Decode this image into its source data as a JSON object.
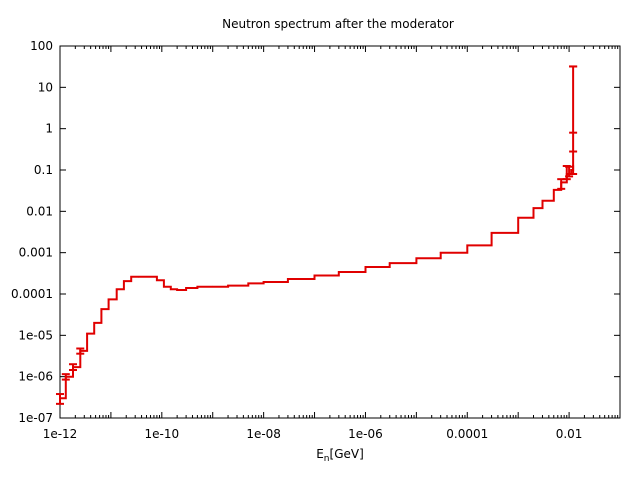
{
  "chart_data": {
    "type": "line",
    "title": "Neutron spectrum after the moderator",
    "xlabel_main": "E",
    "xlabel_sub": "n",
    "xlabel_unit": "[GeV]",
    "ylabel": "",
    "xscale": "log",
    "yscale": "log",
    "xlim": [
      1e-12,
      0.1
    ],
    "ylim": [
      1e-07,
      100
    ],
    "grid": false,
    "legend": "none",
    "line_color": "#e00000",
    "x_ticks": [
      {
        "v": 1e-12,
        "label": "1e-12"
      },
      {
        "v": 1e-10,
        "label": "1e-10"
      },
      {
        "v": 1e-08,
        "label": "1e-08"
      },
      {
        "v": 1e-06,
        "label": "1e-06"
      },
      {
        "v": 0.0001,
        "label": "0.0001"
      },
      {
        "v": 0.01,
        "label": "0.01"
      }
    ],
    "y_ticks": [
      {
        "v": 100,
        "label": "100"
      },
      {
        "v": 10,
        "label": "10"
      },
      {
        "v": 1,
        "label": "1"
      },
      {
        "v": 0.1,
        "label": "0.1"
      },
      {
        "v": 0.01,
        "label": "0.01"
      },
      {
        "v": 0.001,
        "label": "0.001"
      },
      {
        "v": 0.0001,
        "label": "0.0001"
      },
      {
        "v": 1e-05,
        "label": "1e-05"
      },
      {
        "v": 1e-06,
        "label": "1e-06"
      },
      {
        "v": 1e-07,
        "label": "1e-07"
      }
    ],
    "series": [
      {
        "points": [
          {
            "x": 1e-12,
            "y": 3e-07
          },
          {
            "x": 1.3e-12,
            "y": 1e-06
          },
          {
            "x": 1.8e-12,
            "y": 1.7e-06
          },
          {
            "x": 2.5e-12,
            "y": 4.2e-06
          },
          {
            "x": 3.4e-12,
            "y": 1.1e-05
          },
          {
            "x": 4.7e-12,
            "y": 2e-05
          },
          {
            "x": 6.5e-12,
            "y": 4.3e-05
          },
          {
            "x": 9e-12,
            "y": 7.4e-05
          },
          {
            "x": 1.3e-11,
            "y": 0.00013
          },
          {
            "x": 1.8e-11,
            "y": 0.000205
          },
          {
            "x": 2.5e-11,
            "y": 0.00026
          },
          {
            "x": 3.5e-11,
            "y": 0.00026
          },
          {
            "x": 8e-11,
            "y": 0.000215
          },
          {
            "x": 1.1e-10,
            "y": 0.00015
          },
          {
            "x": 1.5e-10,
            "y": 0.00013
          },
          {
            "x": 2e-10,
            "y": 0.000125
          },
          {
            "x": 3e-10,
            "y": 0.00014
          },
          {
            "x": 5e-10,
            "y": 0.00015
          },
          {
            "x": 1e-09,
            "y": 0.00015
          },
          {
            "x": 2e-09,
            "y": 0.00016
          },
          {
            "x": 5e-09,
            "y": 0.00018
          },
          {
            "x": 1e-08,
            "y": 0.000195
          },
          {
            "x": 3e-08,
            "y": 0.00023
          },
          {
            "x": 1e-07,
            "y": 0.00028
          },
          {
            "x": 3e-07,
            "y": 0.00034
          },
          {
            "x": 1e-06,
            "y": 0.00045
          },
          {
            "x": 3e-06,
            "y": 0.00056
          },
          {
            "x": 1e-05,
            "y": 0.00073
          },
          {
            "x": 3e-05,
            "y": 0.001
          },
          {
            "x": 0.0001,
            "y": 0.0015
          },
          {
            "x": 0.0003,
            "y": 0.003
          },
          {
            "x": 0.001,
            "y": 0.007
          },
          {
            "x": 0.002,
            "y": 0.012
          },
          {
            "x": 0.003,
            "y": 0.018
          },
          {
            "x": 0.005,
            "y": 0.033
          },
          {
            "x": 0.007,
            "y": 0.05
          },
          {
            "x": 0.009,
            "y": 0.08
          },
          {
            "x": 0.011,
            "y": 0.1
          },
          {
            "x": 0.012,
            "y": 0.13
          }
        ],
        "error_bars": [
          {
            "x": 1e-12,
            "y": 3e-07,
            "low": 2.2e-07,
            "high": 3.8e-07
          },
          {
            "x": 1.3e-12,
            "y": 1e-06,
            "low": 8.5e-07,
            "high": 1.15e-06
          },
          {
            "x": 1.8e-12,
            "y": 1.7e-06,
            "low": 1.45e-06,
            "high": 2e-06
          },
          {
            "x": 2.5e-12,
            "y": 4.2e-06,
            "low": 3.6e-06,
            "high": 4.8e-06
          },
          {
            "x": 0.007,
            "y": 0.05,
            "low": 0.035,
            "high": 0.06
          },
          {
            "x": 0.009,
            "y": 0.08,
            "low": 0.06,
            "high": 0.125
          },
          {
            "x": 0.01,
            "y": 0.09,
            "low": 0.07,
            "high": 0.12
          },
          {
            "x": 0.012,
            "y": 0.13,
            "low": 0.08,
            "high": 32
          }
        ],
        "error_caps": [
          {
            "x": 0.012,
            "y": 0.28
          },
          {
            "x": 0.012,
            "y": 0.8
          },
          {
            "x": 0.012,
            "y": 32
          }
        ]
      }
    ]
  }
}
